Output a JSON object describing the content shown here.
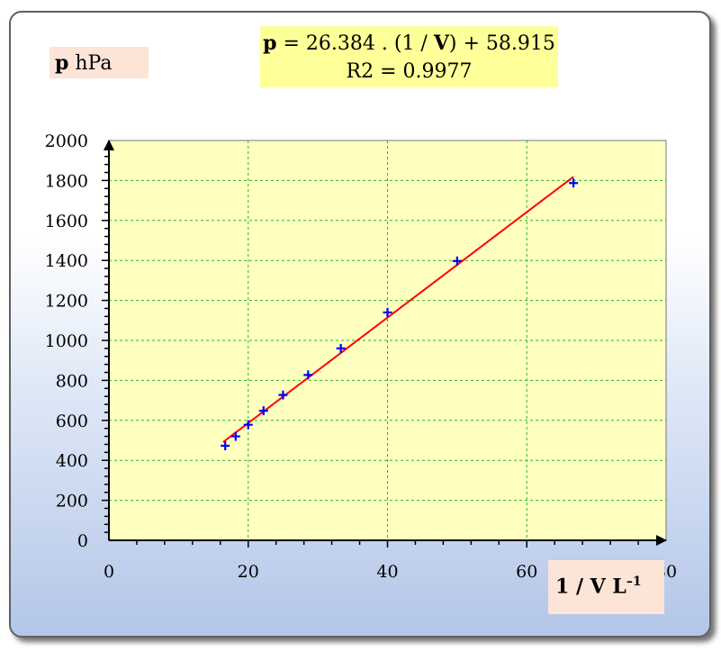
{
  "chart_data": {
    "type": "scatter",
    "x_axis_label": {
      "bold": "1 / V",
      "unit": "L",
      "unit_sup": "–1"
    },
    "y_axis_label": {
      "bold": "p",
      "unit": " hPa"
    },
    "xlim": [
      0,
      80
    ],
    "ylim": [
      0,
      2000
    ],
    "x_ticks": [
      "0",
      "20",
      "40",
      "60",
      "80"
    ],
    "y_ticks": [
      "0",
      "200",
      "400",
      "600",
      "800",
      "1000",
      "1200",
      "1400",
      "1600",
      "1800",
      "2000"
    ],
    "grid": true,
    "series": [
      {
        "marker": "+",
        "color": "#0000ff",
        "points": [
          {
            "x": 16.7,
            "y": 473
          },
          {
            "x": 18.2,
            "y": 520
          },
          {
            "x": 20.0,
            "y": 578
          },
          {
            "x": 22.2,
            "y": 648
          },
          {
            "x": 25.0,
            "y": 727
          },
          {
            "x": 28.6,
            "y": 827
          },
          {
            "x": 33.3,
            "y": 960
          },
          {
            "x": 40.0,
            "y": 1140
          },
          {
            "x": 50.0,
            "y": 1397
          },
          {
            "x": 66.7,
            "y": 1787
          }
        ]
      }
    ],
    "trendline": {
      "color": "#ff0000",
      "slope": 26.384,
      "intercept": 58.915,
      "x_range": [
        16.4,
        66.7
      ]
    },
    "equation": {
      "p": "p",
      "eq_a": " = 26.384 . (1 / ",
      "v": "V",
      "eq_b": ") + 58.915",
      "r2": "R2 = 0.9977"
    },
    "colors": {
      "plot_area": "#ffffc0",
      "grid": "#22bb22",
      "equation_box": "#ffff99",
      "label_box": "#fce4d6"
    }
  }
}
